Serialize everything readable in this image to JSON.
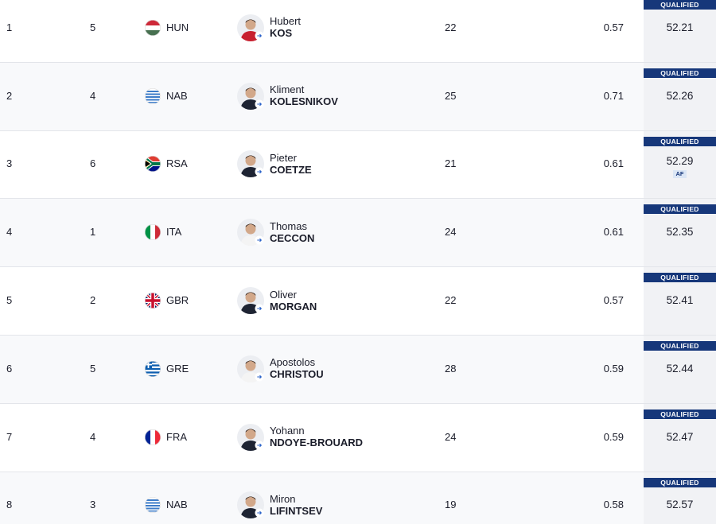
{
  "results": {
    "rows": [
      {
        "rank": "1",
        "lane": "5",
        "country": "HUN",
        "first_name": "Hubert",
        "last_name": "KOS",
        "age": "22",
        "reaction": "0.57",
        "time": "52.21",
        "status": "QUALIFIED"
      },
      {
        "rank": "2",
        "lane": "4",
        "country": "NAB",
        "first_name": "Kliment",
        "last_name": "KOLESNIKOV",
        "age": "25",
        "reaction": "0.71",
        "time": "52.26",
        "status": "QUALIFIED"
      },
      {
        "rank": "3",
        "lane": "6",
        "country": "RSA",
        "first_name": "Pieter",
        "last_name": "COETZE",
        "age": "21",
        "reaction": "0.61",
        "time": "52.29",
        "status": "QUALIFIED",
        "tag": "AF"
      },
      {
        "rank": "4",
        "lane": "1",
        "country": "ITA",
        "first_name": "Thomas",
        "last_name": "CECCON",
        "age": "24",
        "reaction": "0.61",
        "time": "52.35",
        "status": "QUALIFIED"
      },
      {
        "rank": "5",
        "lane": "2",
        "country": "GBR",
        "first_name": "Oliver",
        "last_name": "MORGAN",
        "age": "22",
        "reaction": "0.57",
        "time": "52.41",
        "status": "QUALIFIED"
      },
      {
        "rank": "6",
        "lane": "5",
        "country": "GRE",
        "first_name": "Apostolos",
        "last_name": "CHRISTOU",
        "age": "28",
        "reaction": "0.59",
        "time": "52.44",
        "status": "QUALIFIED"
      },
      {
        "rank": "7",
        "lane": "4",
        "country": "FRA",
        "first_name": "Yohann",
        "last_name": "NDOYE-BROUARD",
        "age": "24",
        "reaction": "0.59",
        "time": "52.47",
        "status": "QUALIFIED"
      },
      {
        "rank": "8",
        "lane": "3",
        "country": "NAB",
        "first_name": "Miron",
        "last_name": "LIFINTSEV",
        "age": "19",
        "reaction": "0.58",
        "time": "52.57",
        "status": "QUALIFIED"
      }
    ]
  }
}
